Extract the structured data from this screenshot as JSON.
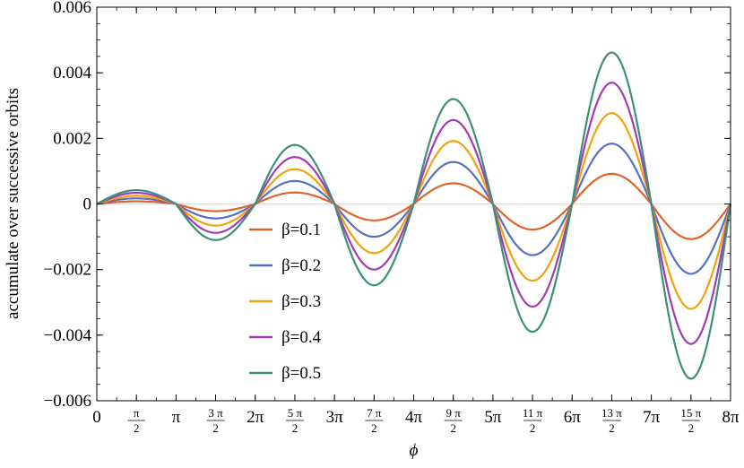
{
  "chart_data": {
    "type": "line",
    "xlabel": "ϕ",
    "ylabel": "accumulate over successive orbits",
    "xlim_in_pi": [
      0,
      8
    ],
    "ylim": [
      -0.006,
      0.006
    ],
    "grid": false,
    "zero_line": true,
    "legend_position": "lower-left",
    "y_ticks": [
      {
        "value": -0.006,
        "label": "−0.006"
      },
      {
        "value": -0.004,
        "label": "−0.004"
      },
      {
        "value": -0.002,
        "label": "−0.002"
      },
      {
        "value": 0,
        "label": "0"
      },
      {
        "value": 0.002,
        "label": "0.002"
      },
      {
        "value": 0.004,
        "label": "0.004"
      },
      {
        "value": 0.006,
        "label": "0.006"
      }
    ],
    "x_ticks": [
      {
        "value_in_pi": 0,
        "label": "0"
      },
      {
        "value_in_pi": 0.5,
        "num": "π",
        "den": "2"
      },
      {
        "value_in_pi": 1,
        "label": "π"
      },
      {
        "value_in_pi": 1.5,
        "num": "3 π",
        "den": "2"
      },
      {
        "value_in_pi": 2,
        "label": "2π"
      },
      {
        "value_in_pi": 2.5,
        "num": "5 π",
        "den": "2"
      },
      {
        "value_in_pi": 3,
        "label": "3π"
      },
      {
        "value_in_pi": 3.5,
        "num": "7 π",
        "den": "2"
      },
      {
        "value_in_pi": 4,
        "label": "4π"
      },
      {
        "value_in_pi": 4.5,
        "num": "9 π",
        "den": "2"
      },
      {
        "value_in_pi": 5,
        "label": "5π"
      },
      {
        "value_in_pi": 5.5,
        "num": "11 π",
        "den": "2"
      },
      {
        "value_in_pi": 6,
        "label": "6π"
      },
      {
        "value_in_pi": 6.5,
        "num": "13 π",
        "den": "2"
      },
      {
        "value_in_pi": 7,
        "label": "7π"
      },
      {
        "value_in_pi": 7.5,
        "num": "15 π",
        "den": "2"
      },
      {
        "value_in_pi": 8,
        "label": "8π"
      }
    ],
    "series": [
      {
        "name": "β=0.1",
        "color": "#E0642A",
        "x_in_pi": [
          0,
          0.5,
          1,
          1.5,
          2,
          2.5,
          3,
          3.5,
          4,
          4.5,
          5,
          5.5,
          6,
          6.5,
          7,
          7.5,
          8
        ],
        "y": [
          0,
          8e-05,
          0,
          -0.00022,
          0,
          0.00035,
          0,
          -0.0005,
          0,
          0.00063,
          0,
          -0.00078,
          0,
          0.00092,
          0,
          -0.00107,
          0
        ]
      },
      {
        "name": "β=0.2",
        "color": "#5A6FBF",
        "x_in_pi": [
          0,
          0.5,
          1,
          1.5,
          2,
          2.5,
          3,
          3.5,
          4,
          4.5,
          5,
          5.5,
          6,
          6.5,
          7,
          7.5,
          8
        ],
        "y": [
          0,
          0.00017,
          0,
          -0.00044,
          0,
          0.0007,
          0,
          -0.001,
          0,
          0.00128,
          0,
          -0.00156,
          0,
          0.00184,
          0,
          -0.00213,
          0
        ]
      },
      {
        "name": "β=0.3",
        "color": "#F0A30A",
        "x_in_pi": [
          0,
          0.5,
          1,
          1.5,
          2,
          2.5,
          3,
          3.5,
          4,
          4.5,
          5,
          5.5,
          6,
          6.5,
          7,
          7.5,
          8
        ],
        "y": [
          0,
          0.00025,
          0,
          -0.00066,
          0,
          0.00106,
          0,
          -0.0015,
          0,
          0.00192,
          0,
          -0.00234,
          0,
          0.00277,
          0,
          -0.0032,
          0
        ]
      },
      {
        "name": "β=0.4",
        "color": "#A23BB5",
        "x_in_pi": [
          0,
          0.5,
          1,
          1.5,
          2,
          2.5,
          3,
          3.5,
          4,
          4.5,
          5,
          5.5,
          6,
          6.5,
          7,
          7.5,
          8
        ],
        "y": [
          0,
          0.00034,
          0,
          -0.00088,
          0,
          0.00143,
          0,
          -0.002,
          0,
          0.00256,
          0,
          -0.00313,
          0,
          0.0037,
          0,
          -0.00427,
          0
        ]
      },
      {
        "name": "β=0.5",
        "color": "#3E8E7E",
        "x_in_pi": [
          0,
          0.5,
          1,
          1.5,
          2,
          2.5,
          3,
          3.5,
          4,
          4.5,
          5,
          5.5,
          6,
          6.5,
          7,
          7.5,
          8
        ],
        "y": [
          0,
          0.00042,
          0,
          -0.0011,
          0,
          0.0018,
          0,
          -0.00248,
          0,
          0.0032,
          0,
          -0.0039,
          0,
          0.00462,
          0,
          -0.00533,
          0
        ]
      }
    ]
  }
}
